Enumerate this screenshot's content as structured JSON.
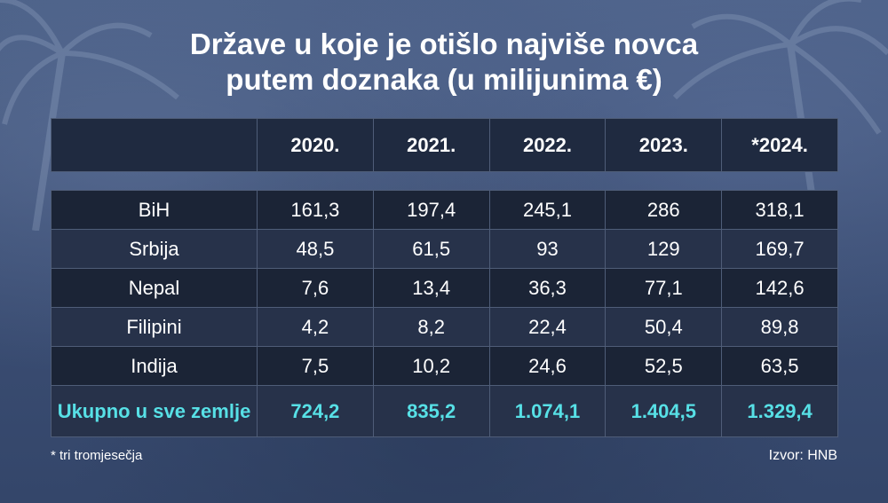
{
  "title": {
    "line1": "Države u koje je otišlo najviše novca",
    "line2": "putem doznaka (u milijunima €)"
  },
  "footnote": "* tri tromjesečja",
  "source": "Izvor: HNB",
  "colors": {
    "accent": "#57e0e6",
    "cell_dark": "#1b2436",
    "cell_light": "#27324a",
    "border": "#4f5d78"
  },
  "chart_data": {
    "type": "table",
    "title": "Države u koje je otišlo najviše novca putem doznaka (u milijunima €)",
    "columns": [
      "2020.",
      "2021.",
      "2022.",
      "2023.",
      "*2024."
    ],
    "rows": [
      {
        "label": "BiH",
        "values": [
          "161,3",
          "197,4",
          "245,1",
          "286",
          "318,1"
        ]
      },
      {
        "label": "Srbija",
        "values": [
          "48,5",
          "61,5",
          "93",
          "129",
          "169,7"
        ]
      },
      {
        "label": "Nepal",
        "values": [
          "7,6",
          "13,4",
          "36,3",
          "77,1",
          "142,6"
        ]
      },
      {
        "label": "Filipini",
        "values": [
          "4,2",
          "8,2",
          "22,4",
          "50,4",
          "89,8"
        ]
      },
      {
        "label": "Indija",
        "values": [
          "7,5",
          "10,2",
          "24,6",
          "52,5",
          "63,5"
        ]
      }
    ],
    "total": {
      "label": "Ukupno u sve zemlje",
      "values": [
        "724,2",
        "835,2",
        "1.074,1",
        "1.404,5",
        "1.329,4"
      ]
    }
  }
}
